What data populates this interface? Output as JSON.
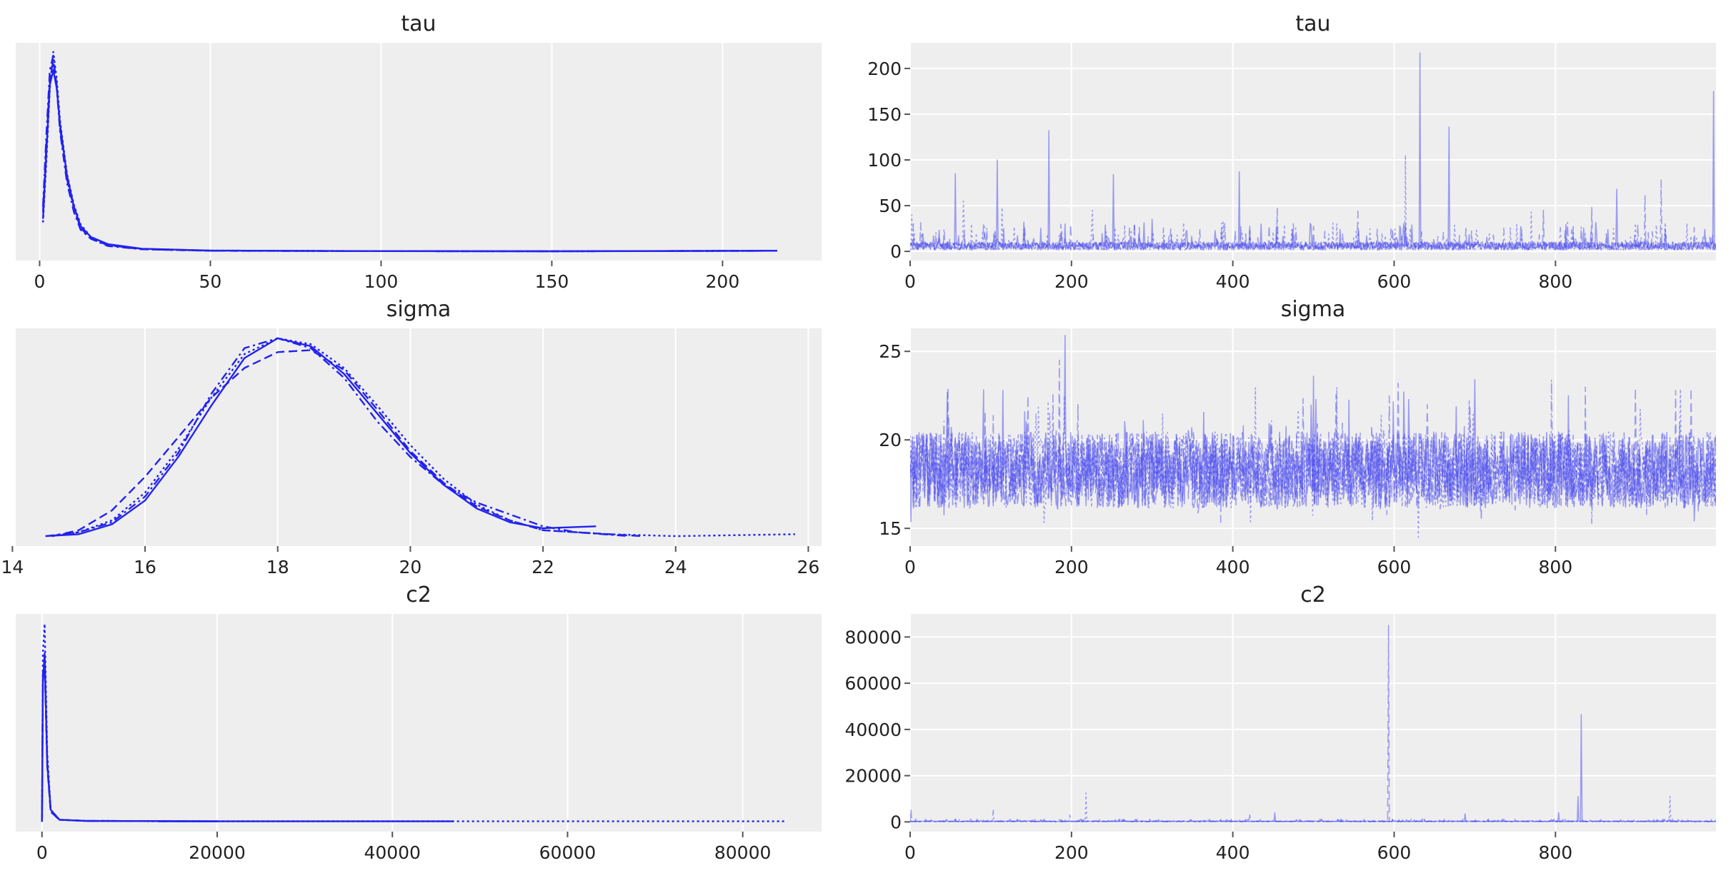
{
  "colors": {
    "line": "#2222ee",
    "panel_background": "#eeeeee",
    "grid": "#ffffff"
  },
  "chart_data": [
    {
      "type": "line",
      "title": "tau",
      "kind": "density",
      "chains": [
        "solid",
        "dashed",
        "dotted",
        "dashdot"
      ],
      "xlim": [
        -7,
        229
      ],
      "xticks": [
        0,
        50,
        100,
        150,
        200
      ],
      "xtick_labels": [
        "0",
        "50",
        "100",
        "150",
        "200"
      ],
      "yticks_shown": false,
      "grid": true,
      "series": [
        {
          "x": [
            1,
            2,
            3,
            4,
            5,
            6,
            8,
            10,
            12,
            15,
            20,
            30,
            50,
            100,
            150,
            216
          ],
          "y": [
            0.18,
            0.55,
            0.92,
            1.0,
            0.9,
            0.7,
            0.42,
            0.25,
            0.14,
            0.08,
            0.04,
            0.015,
            0.005,
            0.002,
            0.001,
            0.004
          ]
        },
        {
          "x": [
            1,
            2,
            3,
            4,
            5,
            6,
            8,
            10,
            12,
            15,
            20,
            30,
            50,
            100,
            150,
            216
          ],
          "y": [
            0.22,
            0.6,
            0.95,
            1.05,
            0.92,
            0.68,
            0.4,
            0.24,
            0.13,
            0.07,
            0.035,
            0.012,
            0.004,
            0.002,
            0.001,
            0.004
          ]
        },
        {
          "x": [
            1,
            2,
            3,
            4,
            5,
            6,
            8,
            10,
            12,
            15,
            20,
            30,
            50,
            100,
            150,
            216
          ],
          "y": [
            0.16,
            0.5,
            0.9,
            1.1,
            0.95,
            0.72,
            0.43,
            0.26,
            0.15,
            0.08,
            0.04,
            0.014,
            0.005,
            0.002,
            0.001,
            0.004
          ]
        },
        {
          "x": [
            1,
            2,
            3,
            4,
            5,
            6,
            8,
            10,
            12,
            15,
            20,
            30,
            50,
            100,
            150,
            216
          ],
          "y": [
            0.25,
            0.65,
            1.0,
            1.08,
            0.9,
            0.66,
            0.38,
            0.22,
            0.12,
            0.07,
            0.03,
            0.012,
            0.004,
            0.002,
            0.001,
            0.004
          ]
        }
      ],
      "ylim": [
        -0.05,
        1.15
      ]
    },
    {
      "type": "line",
      "title": "tau",
      "kind": "trace",
      "xlim": [
        0,
        999
      ],
      "ylim": [
        -10,
        228
      ],
      "xticks": [
        0,
        200,
        400,
        600,
        800
      ],
      "xtick_labels": [
        "0",
        "200",
        "400",
        "600",
        "800"
      ],
      "yticks": [
        0,
        50,
        100,
        150,
        200
      ],
      "ytick_labels": [
        "0",
        "50",
        "100",
        "150",
        "200"
      ],
      "grid": true,
      "baseline": 8,
      "spikes": [
        {
          "x": 2,
          "y": 40
        },
        {
          "x": 56,
          "y": 85
        },
        {
          "x": 66,
          "y": 55
        },
        {
          "x": 108,
          "y": 100
        },
        {
          "x": 114,
          "y": 48
        },
        {
          "x": 172,
          "y": 132
        },
        {
          "x": 226,
          "y": 45
        },
        {
          "x": 252,
          "y": 84
        },
        {
          "x": 300,
          "y": 35
        },
        {
          "x": 408,
          "y": 87
        },
        {
          "x": 455,
          "y": 48
        },
        {
          "x": 555,
          "y": 44
        },
        {
          "x": 614,
          "y": 105
        },
        {
          "x": 632,
          "y": 217
        },
        {
          "x": 668,
          "y": 136
        },
        {
          "x": 770,
          "y": 43
        },
        {
          "x": 785,
          "y": 45
        },
        {
          "x": 845,
          "y": 48
        },
        {
          "x": 876,
          "y": 68
        },
        {
          "x": 911,
          "y": 62
        },
        {
          "x": 931,
          "y": 78
        },
        {
          "x": 996,
          "y": 175
        }
      ]
    },
    {
      "type": "line",
      "title": "sigma",
      "kind": "density",
      "chains": [
        "solid",
        "dashed",
        "dotted",
        "dashdot"
      ],
      "xlim": [
        14.05,
        26.2
      ],
      "xticks": [
        14,
        16,
        18,
        20,
        22,
        24,
        26
      ],
      "xtick_labels": [
        "14",
        "16",
        "18",
        "20",
        "22",
        "24",
        "26"
      ],
      "yticks_shown": false,
      "grid": true,
      "series": [
        {
          "x": [
            14.5,
            15.0,
            15.5,
            16.0,
            16.5,
            17.0,
            17.5,
            18.0,
            18.5,
            19.0,
            19.5,
            20.0,
            20.5,
            21.0,
            21.5,
            22.0,
            22.8
          ],
          "y": [
            0.0,
            0.01,
            0.06,
            0.18,
            0.4,
            0.66,
            0.9,
            1.0,
            0.96,
            0.82,
            0.62,
            0.42,
            0.26,
            0.14,
            0.07,
            0.04,
            0.05
          ]
        },
        {
          "x": [
            14.6,
            15.0,
            15.5,
            16.0,
            16.5,
            17.0,
            17.5,
            18.0,
            18.5,
            19.0,
            19.5,
            20.0,
            20.5,
            21.0,
            21.5,
            22.0,
            23.5
          ],
          "y": [
            0.0,
            0.03,
            0.13,
            0.3,
            0.5,
            0.7,
            0.85,
            0.93,
            0.94,
            0.84,
            0.64,
            0.43,
            0.27,
            0.15,
            0.08,
            0.03,
            0.0
          ]
        },
        {
          "x": [
            14.6,
            15.0,
            15.5,
            16.0,
            16.5,
            17.0,
            17.5,
            18.0,
            18.5,
            19.0,
            19.5,
            20.0,
            20.5,
            21.0,
            21.5,
            22.0,
            23.0,
            24.0,
            25.8
          ],
          "y": [
            0.0,
            0.02,
            0.08,
            0.22,
            0.44,
            0.7,
            0.92,
            1.0,
            0.97,
            0.85,
            0.66,
            0.46,
            0.29,
            0.16,
            0.08,
            0.03,
            0.01,
            0.0,
            0.01
          ]
        },
        {
          "x": [
            14.5,
            15.0,
            15.5,
            16.0,
            16.5,
            17.0,
            17.5,
            18.0,
            18.5,
            19.0,
            19.5,
            20.0,
            20.5,
            21.0,
            21.5,
            22.0,
            22.5,
            23.3
          ],
          "y": [
            0.0,
            0.02,
            0.07,
            0.2,
            0.42,
            0.72,
            0.95,
            1.0,
            0.95,
            0.8,
            0.58,
            0.4,
            0.26,
            0.17,
            0.11,
            0.05,
            0.02,
            0.0
          ]
        }
      ],
      "ylim": [
        -0.05,
        1.05
      ]
    },
    {
      "type": "line",
      "title": "sigma",
      "kind": "trace",
      "xlim": [
        0,
        999
      ],
      "ylim": [
        14,
        26.3
      ],
      "xticks": [
        0,
        200,
        400,
        600,
        800
      ],
      "xtick_labels": [
        "0",
        "200",
        "400",
        "600",
        "800"
      ],
      "yticks": [
        15,
        20,
        25
      ],
      "ytick_labels": [
        "15",
        "20",
        "25"
      ],
      "grid": true,
      "band": {
        "center": 18.3,
        "low": 15.2,
        "high": 23.0
      },
      "spikes": [
        {
          "x": 185,
          "y": 24.5
        },
        {
          "x": 192,
          "y": 25.9
        },
        {
          "x": 500,
          "y": 23.6
        },
        {
          "x": 605,
          "y": 23.2
        },
        {
          "x": 700,
          "y": 23.4
        },
        {
          "x": 795,
          "y": 23.4
        },
        {
          "x": 630,
          "y": 14.5
        }
      ]
    },
    {
      "type": "line",
      "title": "c2",
      "kind": "density",
      "chains": [
        "solid",
        "dashed",
        "dotted",
        "dashdot"
      ],
      "xlim": [
        -3000,
        89000
      ],
      "xticks": [
        0,
        20000,
        40000,
        60000,
        80000
      ],
      "xtick_labels": [
        "0",
        "20000",
        "40000",
        "60000",
        "80000"
      ],
      "yticks_shown": false,
      "grid": true,
      "series": [
        {
          "x": [
            0,
            100,
            300,
            600,
            1000,
            2000,
            5000,
            20000,
            47000
          ],
          "y": [
            0.0,
            0.7,
            0.85,
            0.3,
            0.06,
            0.01,
            0.004,
            0.002,
            0.002
          ]
        },
        {
          "x": [
            0,
            100,
            300,
            600,
            1000,
            2000,
            5000,
            20000,
            13000
          ],
          "y": [
            0.0,
            0.72,
            0.8,
            0.28,
            0.05,
            0.01,
            0.004,
            0.002,
            0.002
          ]
        },
        {
          "x": [
            0,
            100,
            300,
            600,
            1000,
            2000,
            5000,
            20000,
            85000
          ],
          "y": [
            0.0,
            0.85,
            1.0,
            0.35,
            0.06,
            0.01,
            0.004,
            0.002,
            0.002
          ]
        },
        {
          "x": [
            0,
            100,
            300,
            600,
            1000,
            2000,
            5000,
            20000,
            12000
          ],
          "y": [
            0.0,
            0.75,
            0.82,
            0.3,
            0.05,
            0.01,
            0.004,
            0.002,
            0.002
          ]
        }
      ],
      "ylim": [
        -0.05,
        1.05
      ]
    },
    {
      "type": "line",
      "title": "c2",
      "kind": "trace",
      "xlim": [
        0,
        999
      ],
      "ylim": [
        -4200,
        90000
      ],
      "xticks": [
        0,
        200,
        400,
        600,
        800
      ],
      "xtick_labels": [
        "0",
        "200",
        "400",
        "600",
        "800"
      ],
      "yticks": [
        0,
        20000,
        40000,
        60000,
        80000
      ],
      "ytick_labels": [
        "0",
        "20000",
        "40000",
        "60000",
        "80000"
      ],
      "grid": true,
      "baseline": 300,
      "spikes": [
        {
          "x": 1,
          "y": 5500
        },
        {
          "x": 103,
          "y": 5000
        },
        {
          "x": 198,
          "y": 3500
        },
        {
          "x": 218,
          "y": 12500
        },
        {
          "x": 421,
          "y": 3000
        },
        {
          "x": 452,
          "y": 4000
        },
        {
          "x": 593,
          "y": 85000
        },
        {
          "x": 688,
          "y": 3500
        },
        {
          "x": 804,
          "y": 4000
        },
        {
          "x": 828,
          "y": 11000
        },
        {
          "x": 832,
          "y": 46500
        },
        {
          "x": 942,
          "y": 11000
        }
      ]
    }
  ]
}
